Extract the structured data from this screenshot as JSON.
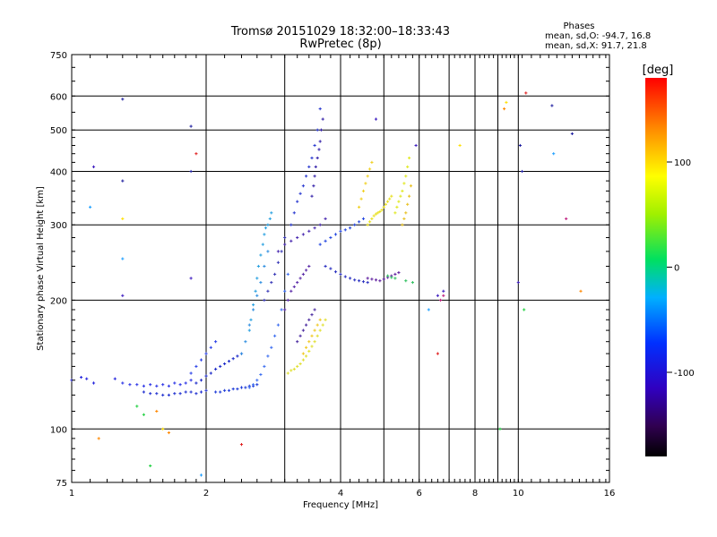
{
  "header": {
    "title": "Tromsø 20151029 18:32:00–18:33:43",
    "subtitle": "RwPretec (8p)"
  },
  "stats": {
    "label": "Phases",
    "line_o": "mean, sd,O: -94.7, 16.8",
    "line_x": "mean, sd,X:  91.7, 21.8"
  },
  "chart_data": {
    "type": "scatter",
    "title": "Tromsø 20151029 18:32:00–18:33:43",
    "subtitle": "RwPretec (8p)",
    "xlabel": "Frequency [MHz]",
    "ylabel": "Stationary phase Virtual Height [km]",
    "xscale": "log",
    "yscale": "log",
    "xlim": [
      1,
      16
    ],
    "ylim": [
      75,
      750
    ],
    "x_ticks": [
      1,
      2,
      4,
      6,
      8,
      10,
      16
    ],
    "x_tick_labels": [
      "1",
      "2",
      "4",
      "6",
      "8",
      "10",
      "16"
    ],
    "x_grid": [
      1,
      2,
      3,
      4,
      5,
      6,
      7,
      8,
      9,
      10,
      16
    ],
    "y_ticks": [
      75,
      100,
      200,
      300,
      400,
      500,
      600,
      750
    ],
    "y_tick_labels": [
      "75",
      "100",
      "200",
      "300",
      "400",
      "500",
      "600",
      "750"
    ],
    "grid": true,
    "colorbar": {
      "label": "[deg]",
      "range": [
        -180,
        180
      ],
      "ticks": [
        100,
        0,
        -100
      ],
      "tick_labels": [
        "100",
        "0",
        "-100"
      ],
      "position": "right"
    },
    "series": [
      {
        "color": "#2222dd",
        "phase": -100,
        "x": [
          1.0,
          1.08,
          1.12,
          1.05,
          1.25
        ],
        "y": [
          130,
          131,
          128,
          132,
          131
        ]
      },
      {
        "color": "#2a32e6",
        "phase": -100,
        "x": [
          1.3,
          1.35,
          1.4,
          1.45,
          1.5,
          1.55,
          1.6,
          1.65,
          1.7,
          1.75,
          1.8,
          1.85
        ],
        "y": [
          128,
          127,
          127,
          126,
          127,
          126,
          127,
          126,
          128,
          127,
          128,
          130
        ]
      },
      {
        "color": "#2030d0",
        "phase": -105,
        "x": [
          1.45,
          1.5,
          1.55,
          1.6,
          1.65,
          1.7,
          1.75,
          1.8,
          1.85,
          1.9,
          1.95,
          2.0
        ],
        "y": [
          122,
          121,
          121,
          120,
          120,
          121,
          121,
          122,
          122,
          121,
          122,
          123
        ]
      },
      {
        "color": "#1a28c8",
        "phase": -105,
        "x": [
          1.9,
          1.95,
          2.0,
          2.05,
          2.1,
          2.15,
          2.2,
          2.25,
          2.3,
          2.35,
          2.4
        ],
        "y": [
          128,
          130,
          133,
          135,
          138,
          140,
          142,
          144,
          146,
          148,
          150
        ]
      },
      {
        "color": "#2a40e8",
        "phase": -100,
        "x": [
          1.85,
          1.9,
          1.95,
          2.0,
          2.05,
          2.1
        ],
        "y": [
          135,
          140,
          145,
          150,
          155,
          160
        ]
      },
      {
        "color": "#1f3cd8",
        "phase": -100,
        "x": [
          2.1,
          2.15,
          2.2,
          2.25,
          2.3,
          2.35,
          2.4,
          2.45,
          2.5,
          2.55,
          2.6
        ],
        "y": [
          122,
          122,
          123,
          123,
          124,
          124,
          125,
          125,
          126,
          126,
          127
        ]
      },
      {
        "color": "#3c6ef0",
        "phase": -95,
        "x": [
          2.5,
          2.55,
          2.6,
          2.65,
          2.7,
          2.75,
          2.8,
          2.85,
          2.9,
          2.95,
          3.0,
          3.05
        ],
        "y": [
          125,
          127,
          130,
          134,
          140,
          148,
          155,
          165,
          175,
          190,
          210,
          230
        ]
      },
      {
        "color": "#28a0e0",
        "phase": -75,
        "x": [
          2.5,
          2.52,
          2.55,
          2.58,
          2.6,
          2.62,
          2.65,
          2.68,
          2.7,
          2.72,
          2.75,
          2.78,
          2.8
        ],
        "y": [
          170,
          180,
          195,
          210,
          225,
          240,
          255,
          270,
          285,
          295,
          300,
          310,
          320
        ]
      },
      {
        "color": "#2f8ee0",
        "phase": -80,
        "x": [
          2.4,
          2.45,
          2.5,
          2.55,
          2.6,
          2.65,
          2.7,
          2.75
        ],
        "y": [
          150,
          160,
          175,
          190,
          205,
          220,
          240,
          260
        ]
      },
      {
        "color": "#3a3ab8",
        "phase": -110,
        "x": [
          2.7,
          2.75,
          2.8,
          2.85,
          2.9,
          2.95,
          3.0
        ],
        "y": [
          200,
          210,
          220,
          230,
          245,
          260,
          280
        ]
      },
      {
        "color": "#5a2aa8",
        "phase": -130,
        "x": [
          3.0,
          3.05,
          3.1,
          3.15,
          3.2,
          3.25,
          3.3,
          3.35,
          3.4
        ],
        "y": [
          190,
          200,
          210,
          215,
          220,
          225,
          230,
          235,
          240
        ]
      },
      {
        "color": "#4a2ab0",
        "phase": -125,
        "x": [
          2.9,
          3.0,
          3.1,
          3.2,
          3.3,
          3.4,
          3.5,
          3.6,
          3.7
        ],
        "y": [
          260,
          270,
          275,
          280,
          285,
          290,
          295,
          300,
          310
        ]
      },
      {
        "color": "#2a3ad0",
        "phase": -110,
        "x": [
          3.1,
          3.15,
          3.2,
          3.25,
          3.3,
          3.35,
          3.4,
          3.45,
          3.5,
          3.55,
          3.6
        ],
        "y": [
          300,
          320,
          340,
          355,
          370,
          390,
          410,
          430,
          460,
          500,
          560
        ]
      },
      {
        "color": "#3320a8",
        "phase": -125,
        "x": [
          3.45,
          3.48,
          3.5,
          3.52,
          3.55,
          3.58,
          3.6,
          3.62,
          3.65
        ],
        "y": [
          350,
          370,
          390,
          410,
          430,
          450,
          470,
          500,
          530
        ]
      },
      {
        "color": "#2648e0",
        "phase": -100,
        "x": [
          3.6,
          3.7,
          3.8,
          3.9,
          4.0,
          4.1,
          4.2,
          4.3,
          4.4,
          4.5
        ],
        "y": [
          270,
          275,
          280,
          285,
          290,
          292,
          295,
          300,
          305,
          310
        ]
      },
      {
        "color": "#2a30c0",
        "phase": -115,
        "x": [
          3.7,
          3.8,
          3.9,
          4.0,
          4.1,
          4.2,
          4.3,
          4.4,
          4.5,
          4.6
        ],
        "y": [
          240,
          237,
          233,
          230,
          227,
          225,
          223,
          222,
          221,
          220
        ]
      },
      {
        "color": "#6020a0",
        "phase": -140,
        "x": [
          4.6,
          4.7,
          4.8,
          4.9,
          5.0,
          5.1,
          5.2,
          5.3,
          5.4
        ],
        "y": [
          225,
          224,
          223,
          222,
          224,
          226,
          228,
          230,
          232
        ]
      },
      {
        "color": "#e8e020",
        "phase": 95,
        "x": [
          4.6,
          4.65,
          4.7,
          4.75,
          4.8,
          4.85,
          4.9,
          4.95,
          5.0,
          5.05,
          5.1,
          5.15,
          5.2
        ],
        "y": [
          300,
          305,
          310,
          315,
          318,
          320,
          322,
          325,
          330,
          335,
          340,
          345,
          350
        ]
      },
      {
        "color": "#f0d020",
        "phase": 110,
        "x": [
          4.4,
          4.45,
          4.5,
          4.55,
          4.6,
          4.65,
          4.7
        ],
        "y": [
          330,
          345,
          360,
          375,
          390,
          405,
          420
        ]
      },
      {
        "color": "#e0e820",
        "phase": 90,
        "x": [
          5.3,
          5.35,
          5.4,
          5.45,
          5.5,
          5.55,
          5.6,
          5.65,
          5.7
        ],
        "y": [
          320,
          330,
          340,
          350,
          360,
          375,
          390,
          410,
          430
        ]
      },
      {
        "color": "#e8c020",
        "phase": 115,
        "x": [
          5.5,
          5.55,
          5.6,
          5.65,
          5.7,
          5.75
        ],
        "y": [
          300,
          310,
          320,
          335,
          350,
          370
        ]
      },
      {
        "color": "#e0e030",
        "phase": 90,
        "x": [
          3.05,
          3.1,
          3.15,
          3.2,
          3.25,
          3.3,
          3.35,
          3.4,
          3.45,
          3.5,
          3.55,
          3.6,
          3.65,
          3.7
        ],
        "y": [
          135,
          137,
          138,
          140,
          142,
          145,
          148,
          152,
          156,
          160,
          165,
          170,
          175,
          180
        ]
      },
      {
        "color": "#f0c820",
        "phase": 110,
        "x": [
          3.3,
          3.35,
          3.4,
          3.45,
          3.5,
          3.55,
          3.6
        ],
        "y": [
          150,
          155,
          160,
          165,
          170,
          175,
          180
        ]
      },
      {
        "color": "#4a2aa0",
        "phase": -125,
        "x": [
          3.2,
          3.25,
          3.3,
          3.35,
          3.4,
          3.45,
          3.5
        ],
        "y": [
          160,
          165,
          170,
          175,
          180,
          185,
          190
        ]
      },
      {
        "color": "#30c060",
        "phase": -10,
        "x": [
          5.1,
          5.2,
          5.3,
          5.6,
          5.8
        ],
        "y": [
          228,
          226,
          225,
          222,
          220
        ]
      },
      {
        "color": "#e02020",
        "phase": 170,
        "x": [
          1.9,
          2.4,
          6.6,
          10.4
        ],
        "y": [
          440,
          92,
          150,
          610
        ]
      },
      {
        "color": "#ff8800",
        "phase": 140,
        "x": [
          1.15,
          1.55,
          1.65,
          9.3,
          13.8
        ],
        "y": [
          95,
          110,
          98,
          560,
          210
        ]
      },
      {
        "color": "#20d040",
        "phase": 20,
        "x": [
          1.4,
          1.45,
          1.5,
          9.1,
          10.3
        ],
        "y": [
          113,
          108,
          82,
          100,
          190
        ]
      },
      {
        "color": "#20a0ff",
        "phase": -60,
        "x": [
          1.1,
          1.3,
          1.95,
          6.3,
          12.0
        ],
        "y": [
          330,
          250,
          78,
          190,
          440
        ]
      },
      {
        "color": "#2020a0",
        "phase": -120,
        "x": [
          1.3,
          1.3,
          1.85,
          1.85,
          10.1,
          11.9,
          10.2,
          13.2
        ],
        "y": [
          590,
          380,
          510,
          400,
          460,
          570,
          400,
          490
        ]
      },
      {
        "color": "#4020c0",
        "phase": -130,
        "x": [
          1.12,
          1.3,
          1.85,
          4.8,
          5.9,
          6.6,
          6.8,
          10.0
        ],
        "y": [
          410,
          205,
          225,
          530,
          460,
          205,
          210,
          220
        ]
      },
      {
        "color": "#c02080",
        "phase": -160,
        "x": [
          6.7,
          6.8,
          12.8
        ],
        "y": [
          200,
          205,
          310
        ]
      },
      {
        "color": "#ffe000",
        "phase": 100,
        "x": [
          7.4,
          9.4,
          1.3,
          1.6
        ],
        "y": [
          460,
          580,
          310,
          100
        ]
      }
    ]
  }
}
